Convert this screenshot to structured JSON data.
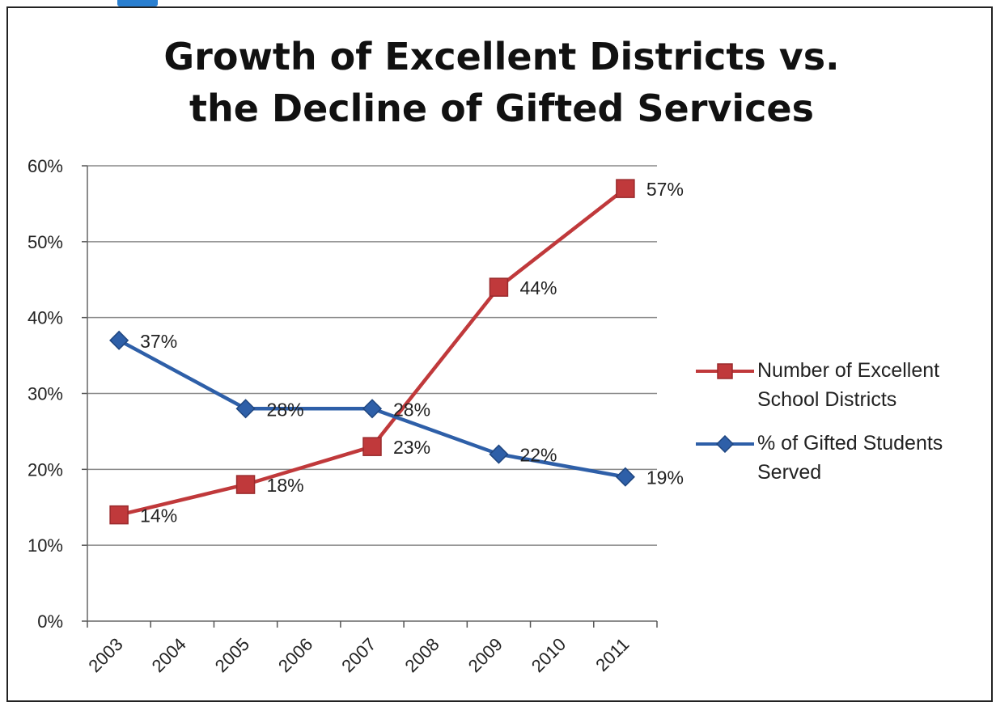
{
  "chart_data": {
    "type": "line",
    "title_line1": "Growth of Excellent Districts vs.",
    "title_line2": "the Decline of Gifted Services",
    "xlabel": "",
    "ylabel": "",
    "categories": [
      "2003",
      "2004",
      "2005",
      "2006",
      "2007",
      "2008",
      "2009",
      "2010",
      "2011"
    ],
    "y_ticks": [
      "0%",
      "10%",
      "20%",
      "30%",
      "40%",
      "50%",
      "60%"
    ],
    "ylim": [
      0,
      60
    ],
    "grid": true,
    "legend_position": "right",
    "series": [
      {
        "name": "Number of Excellent School Districts",
        "legend_lines": [
          "Number of Excellent",
          "School Districts"
        ],
        "color": "#c0393b",
        "marker": "square",
        "points": [
          {
            "x": "2003",
            "y": 14,
            "label": "14%"
          },
          {
            "x": "2005",
            "y": 18,
            "label": "18%"
          },
          {
            "x": "2007",
            "y": 23,
            "label": "23%"
          },
          {
            "x": "2009",
            "y": 44,
            "label": "44%"
          },
          {
            "x": "2011",
            "y": 57,
            "label": "57%"
          }
        ]
      },
      {
        "name": "% of Gifted Students Served",
        "legend_lines": [
          "% of Gifted Students",
          "Served"
        ],
        "color": "#2e5fa8",
        "marker": "diamond",
        "points": [
          {
            "x": "2003",
            "y": 37,
            "label": "37%"
          },
          {
            "x": "2005",
            "y": 28,
            "label": "28%"
          },
          {
            "x": "2007",
            "y": 28,
            "label": "28%"
          },
          {
            "x": "2009",
            "y": 22,
            "label": "22%"
          },
          {
            "x": "2011",
            "y": 19,
            "label": "19%"
          }
        ]
      }
    ]
  }
}
